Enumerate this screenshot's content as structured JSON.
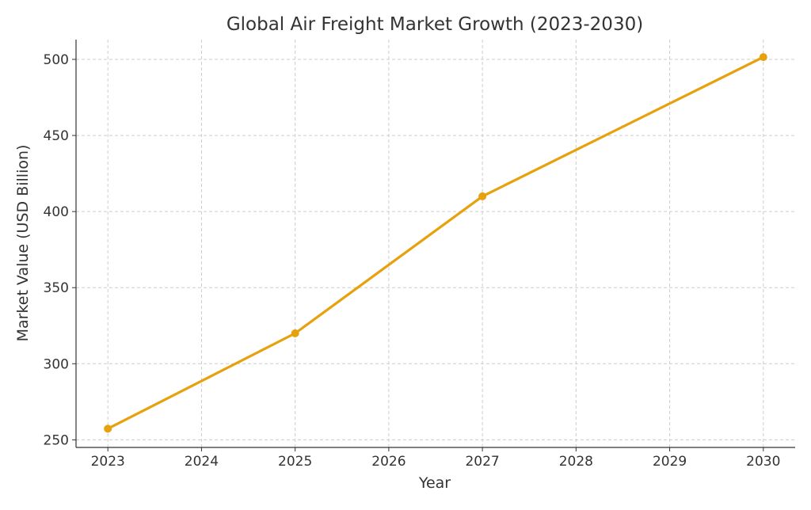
{
  "chart_data": {
    "type": "line",
    "title": "Global Air Freight Market Growth (2023-2030)",
    "xlabel": "Year",
    "ylabel": "Market Value (USD Billion)",
    "x_ticks": [
      "2023",
      "2024",
      "2025",
      "2026",
      "2027",
      "2028",
      "2029",
      "2030"
    ],
    "y_ticks": [
      250,
      300,
      350,
      400,
      450,
      500
    ],
    "xlim": [
      2022.66,
      2030.34
    ],
    "ylim": [
      245,
      513
    ],
    "grid": true,
    "series": [
      {
        "color": "#E6A10C",
        "marker": "circle",
        "x": [
          2023,
          2025,
          2027,
          2030
        ],
        "y": [
          257.3,
          320,
          410,
          501.5
        ]
      }
    ]
  }
}
